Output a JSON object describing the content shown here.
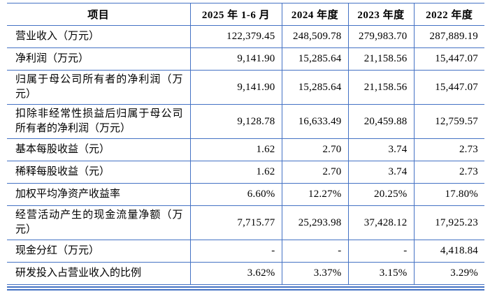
{
  "colors": {
    "border_blue": "#4472C4",
    "text": "#000000",
    "background": "#ffffff"
  },
  "table": {
    "columns": [
      "项目",
      "2025 年 1-6 月",
      "2024 年度",
      "2023 年度",
      "2022 年度"
    ],
    "rows": [
      {
        "label": "营业收入（万元）",
        "values": [
          "122,379.45",
          "248,509.78",
          "279,983.70",
          "287,889.19"
        ]
      },
      {
        "label": "净利润（万元）",
        "values": [
          "9,141.90",
          "15,285.64",
          "21,158.56",
          "15,447.07"
        ]
      },
      {
        "label": "归属于母公司所有者的净利润（万元）",
        "values": [
          "9,141.90",
          "15,285.64",
          "21,158.56",
          "15,447.07"
        ]
      },
      {
        "label": "扣除非经常性损益后归属于母公司所有者的净利润（万元）",
        "values": [
          "9,128.78",
          "16,633.49",
          "20,459.88",
          "12,759.57"
        ]
      },
      {
        "label": "基本每股收益（元）",
        "values": [
          "1.62",
          "2.70",
          "3.74",
          "2.73"
        ]
      },
      {
        "label": "稀释每股收益（元）",
        "values": [
          "1.62",
          "2.70",
          "3.74",
          "2.73"
        ]
      },
      {
        "label": "加权平均净资产收益率",
        "values": [
          "6.60%",
          "12.27%",
          "20.25%",
          "17.80%"
        ]
      },
      {
        "label": "经营活动产生的现金流量净额（万元）",
        "values": [
          "7,715.77",
          "25,293.98",
          "37,428.12",
          "17,925.23"
        ]
      },
      {
        "label": "现金分红（万元）",
        "values": [
          "-",
          "-",
          "-",
          "4,418.84"
        ]
      },
      {
        "label": "研发投入占营业收入的比例",
        "values": [
          "3.62%",
          "3.37%",
          "3.15%",
          "3.29%"
        ]
      }
    ]
  }
}
